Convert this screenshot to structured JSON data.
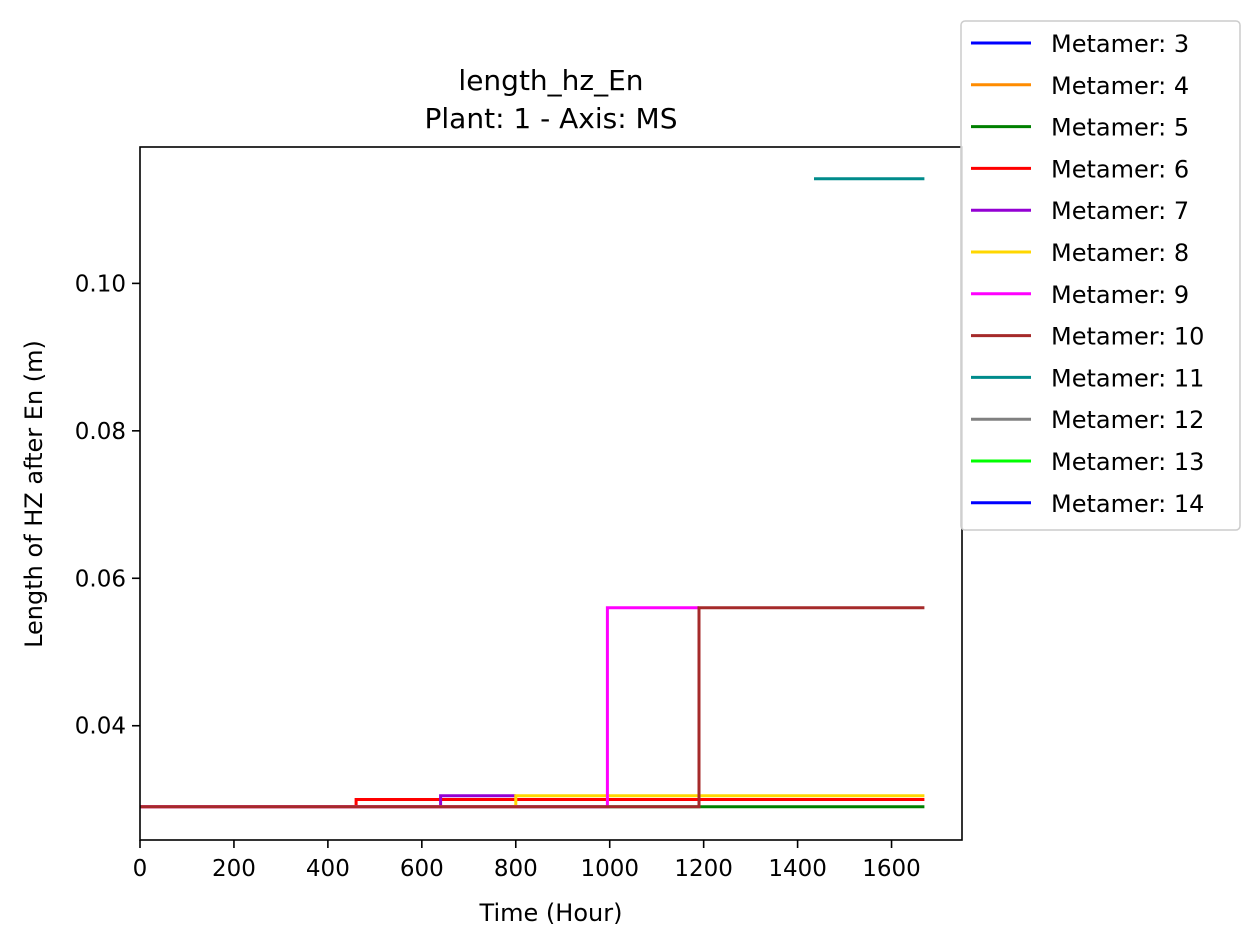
{
  "chart_data": {
    "type": "line",
    "title": "length_hz_En",
    "subtitle": "Plant: 1 - Axis: MS",
    "xlabel": "Time (Hour)",
    "ylabel": "Length of HZ after En (m)",
    "xlim": [
      0,
      1750
    ],
    "ylim": [
      0.0245,
      0.1185
    ],
    "xticks": [
      0,
      200,
      400,
      600,
      800,
      1000,
      1200,
      1400,
      1600
    ],
    "yticks": [
      0.04,
      0.06,
      0.08,
      0.1
    ],
    "ytick_labels": [
      "0.04",
      "0.06",
      "0.08",
      "0.10"
    ],
    "grid": false,
    "legend_placement": "outside top-right",
    "step": true,
    "series": [
      {
        "name": "Metamer: 3",
        "color": "#0000ff",
        "x": [],
        "y": []
      },
      {
        "name": "Metamer: 4",
        "color": "#ff8c00",
        "x": [],
        "y": []
      },
      {
        "name": "Metamer: 5",
        "color": "#008000",
        "x": [
          0,
          1190,
          1670
        ],
        "y": [
          0.029,
          0.029,
          0.029
        ]
      },
      {
        "name": "Metamer: 6",
        "color": "#ff0000",
        "x": [
          0,
          460,
          1670
        ],
        "y": [
          0.029,
          0.03,
          0.03
        ]
      },
      {
        "name": "Metamer: 7",
        "color": "#9400d3",
        "x": [
          0,
          640,
          800
        ],
        "y": [
          0.029,
          0.0305,
          0.0305
        ]
      },
      {
        "name": "Metamer: 8",
        "color": "#ffd700",
        "x": [
          0,
          800,
          1670
        ],
        "y": [
          0.029,
          0.0305,
          0.0305
        ]
      },
      {
        "name": "Metamer: 9",
        "color": "#ff00ff",
        "x": [
          0,
          995,
          1190
        ],
        "y": [
          0.029,
          0.056,
          0.056
        ]
      },
      {
        "name": "Metamer: 10",
        "color": "#a52a2a",
        "x": [
          0,
          1190,
          1670
        ],
        "y": [
          0.029,
          0.056,
          0.056
        ]
      },
      {
        "name": "Metamer: 11",
        "color": "#008b8b",
        "x": [
          1435,
          1670
        ],
        "y": [
          0.1142,
          0.1142
        ]
      },
      {
        "name": "Metamer: 12",
        "color": "#808080",
        "x": [],
        "y": []
      },
      {
        "name": "Metamer: 13",
        "color": "#00ff00",
        "x": [],
        "y": []
      },
      {
        "name": "Metamer: 14",
        "color": "#0000ff",
        "x": [],
        "y": []
      }
    ]
  }
}
